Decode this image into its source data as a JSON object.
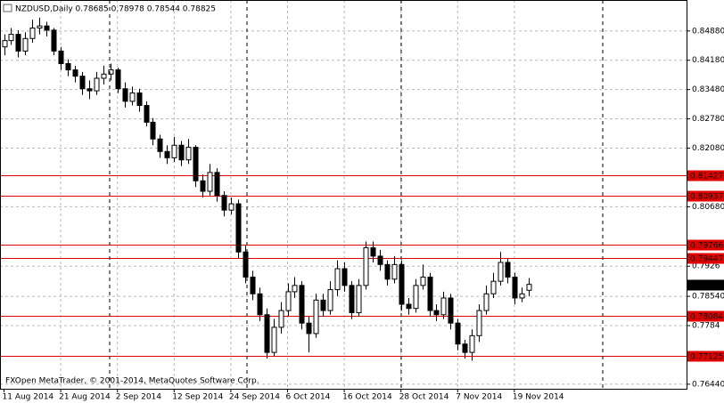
{
  "chart_data": {
    "type": "candlestick",
    "title": "NZDUSD,Daily  0.78685 0.78978 0.78544 0.78825",
    "copyright": "FXOpen MetaTrader, © 2001-2014, MetaQuotes Software Corp.",
    "categories": [
      "11 Aug 2014",
      null,
      null,
      null,
      null,
      null,
      null,
      null,
      "21 Aug 2014",
      null,
      null,
      null,
      null,
      null,
      null,
      null,
      "2 Sep 2014",
      null,
      null,
      null,
      null,
      null,
      null,
      null,
      "12 Sep 2014",
      null,
      null,
      null,
      null,
      null,
      null,
      null,
      "24 Sep 2014",
      null,
      null,
      null,
      null,
      null,
      null,
      null,
      "6 Oct 2014",
      null,
      null,
      null,
      null,
      null,
      null,
      null,
      "16 Oct 2014",
      null,
      null,
      null,
      null,
      null,
      null,
      null,
      "28 Oct 2014",
      null,
      null,
      null,
      null,
      null,
      null,
      null,
      "7 Nov 2014",
      null,
      null,
      null,
      null,
      null,
      null,
      null,
      "19 Nov 2014",
      null,
      null
    ],
    "open": [
      0.845,
      0.8465,
      0.848,
      0.844,
      0.847,
      0.8495,
      0.85,
      0.849,
      0.844,
      0.841,
      0.8395,
      0.838,
      0.835,
      0.8345,
      0.8375,
      0.8385,
      0.8395,
      0.835,
      0.832,
      0.834,
      0.831,
      0.827,
      0.823,
      0.82,
      0.8185,
      0.8215,
      0.818,
      0.821,
      0.813,
      0.8105,
      0.815,
      0.8095,
      0.806,
      0.8075,
      0.796,
      0.79,
      0.786,
      0.781,
      0.772,
      0.778,
      0.782,
      0.7865,
      0.788,
      0.779,
      0.7765,
      0.7845,
      0.782,
      0.787,
      0.792,
      0.788,
      0.7815,
      0.788,
      0.797,
      0.795,
      0.793,
      0.7895,
      0.793,
      0.7835,
      0.7825,
      0.788,
      0.79,
      0.782,
      0.781,
      0.785,
      0.779,
      0.774,
      0.772,
      0.776,
      0.782,
      0.786,
      0.789,
      0.7935,
      0.79,
      0.785,
      0.78685
    ],
    "high": [
      0.848,
      0.8495,
      0.849,
      0.8485,
      0.8515,
      0.852,
      0.851,
      0.8495,
      0.845,
      0.842,
      0.8405,
      0.839,
      0.837,
      0.839,
      0.8405,
      0.841,
      0.84,
      0.8365,
      0.8355,
      0.835,
      0.832,
      0.828,
      0.824,
      0.8215,
      0.8235,
      0.8225,
      0.823,
      0.8215,
      0.8145,
      0.817,
      0.816,
      0.8105,
      0.809,
      0.8085,
      0.7975,
      0.7915,
      0.7875,
      0.7825,
      0.78,
      0.784,
      0.7885,
      0.79,
      0.789,
      0.7805,
      0.786,
      0.786,
      0.789,
      0.794,
      0.7935,
      0.789,
      0.7895,
      0.7985,
      0.7985,
      0.7965,
      0.794,
      0.795,
      0.794,
      0.785,
      0.7895,
      0.793,
      0.791,
      0.7835,
      0.7865,
      0.786,
      0.78,
      0.775,
      0.7775,
      0.7835,
      0.788,
      0.791,
      0.796,
      0.7945,
      0.791,
      0.7875,
      0.78978
    ],
    "low": [
      0.843,
      0.8455,
      0.8425,
      0.843,
      0.846,
      0.848,
      0.8475,
      0.843,
      0.8395,
      0.838,
      0.8365,
      0.8335,
      0.8325,
      0.8335,
      0.836,
      0.837,
      0.834,
      0.8305,
      0.831,
      0.8295,
      0.826,
      0.8215,
      0.8185,
      0.817,
      0.8175,
      0.8165,
      0.817,
      0.8115,
      0.809,
      0.8095,
      0.808,
      0.8045,
      0.805,
      0.7945,
      0.7885,
      0.7845,
      0.7795,
      0.7705,
      0.771,
      0.7765,
      0.7805,
      0.785,
      0.7775,
      0.772,
      0.7755,
      0.7805,
      0.781,
      0.7855,
      0.7865,
      0.78,
      0.7805,
      0.787,
      0.7935,
      0.7915,
      0.788,
      0.7885,
      0.782,
      0.781,
      0.7815,
      0.787,
      0.7805,
      0.7795,
      0.78,
      0.7775,
      0.7725,
      0.7705,
      0.77,
      0.7745,
      0.781,
      0.785,
      0.788,
      0.7885,
      0.7835,
      0.784,
      0.78544
    ],
    "close": [
      0.8465,
      0.848,
      0.844,
      0.847,
      0.8495,
      0.85,
      0.849,
      0.844,
      0.841,
      0.8395,
      0.838,
      0.835,
      0.8345,
      0.8375,
      0.8385,
      0.8395,
      0.835,
      0.832,
      0.834,
      0.831,
      0.827,
      0.823,
      0.82,
      0.8185,
      0.8215,
      0.818,
      0.821,
      0.813,
      0.8105,
      0.815,
      0.8095,
      0.806,
      0.8075,
      0.796,
      0.79,
      0.786,
      0.781,
      0.772,
      0.778,
      0.782,
      0.7865,
      0.788,
      0.779,
      0.7765,
      0.7845,
      0.782,
      0.787,
      0.792,
      0.788,
      0.7815,
      0.788,
      0.797,
      0.795,
      0.793,
      0.7895,
      0.793,
      0.7835,
      0.7825,
      0.788,
      0.79,
      0.782,
      0.781,
      0.785,
      0.779,
      0.774,
      0.772,
      0.776,
      0.782,
      0.786,
      0.789,
      0.7935,
      0.79,
      0.785,
      0.786,
      0.78825
    ],
    "levels": [
      0.81427,
      0.80937,
      0.79766,
      0.79447,
      0.78084,
      0.77125
    ],
    "level_color": "#e00000",
    "ylim": [
      0.7631,
      0.8562
    ],
    "yticks": [
      {
        "value": 0.8488,
        "label": "0.84880"
      },
      {
        "value": 0.8418,
        "label": "0.84180"
      },
      {
        "value": 0.8348,
        "label": "0.83480"
      },
      {
        "value": 0.8278,
        "label": "0.82780"
      },
      {
        "value": 0.8208,
        "label": "0.82080"
      },
      {
        "value": 0.8068,
        "label": "0.80680"
      },
      0.7926,
      {
        "value": 0.7854,
        "label": "0.78540"
      },
      0.7784,
      {
        "value": 0.7644,
        "label": "0.76440"
      }
    ],
    "grid": true
  }
}
